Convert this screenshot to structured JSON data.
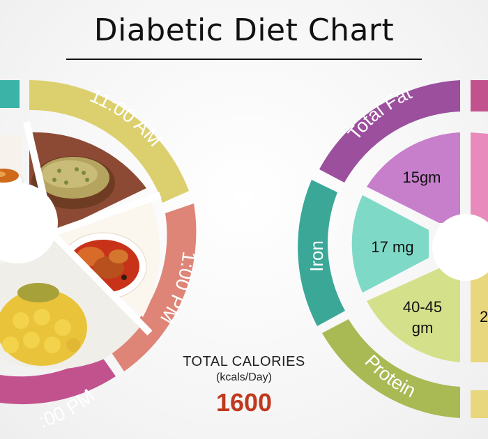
{
  "title": "Diabetic Diet Chart",
  "meal_wheel": {
    "times": [
      "11:00 AM",
      "1:00 PM",
      ":00 PM"
    ],
    "colors": {
      "teal": "#3bb3a6",
      "yellow": "#dcd06e",
      "salmon": "#de8577",
      "magenta": "#c2528e"
    },
    "foods": [
      "soup-bowl-image",
      "sprouts-bowl-image",
      "fish-curry-image",
      "jackfruit-image"
    ]
  },
  "nutrient_wheel": {
    "outer_labels": [
      "Total Fat",
      "Iron",
      "Protein"
    ],
    "values": {
      "total_fat": "15gm",
      "iron": "17 mg",
      "protein_line1": "40-45",
      "protein_line2": "gm",
      "partial_right": "2"
    },
    "colors": {
      "total_fat_outer": "#9b4f9d",
      "total_fat_inner": "#c77fcc",
      "iron_outer": "#3aa797",
      "iron_inner": "#7edac7",
      "protein_outer": "#a9b954",
      "protein_inner": "#d5e08a",
      "pink_outer": "#c2528e",
      "pink_inner": "#e98abc",
      "gold_inner": "#e8d77d"
    }
  },
  "calories": {
    "label": "TOTAL CALORIES",
    "unit": "(kcals/Day)",
    "value": "1600"
  }
}
